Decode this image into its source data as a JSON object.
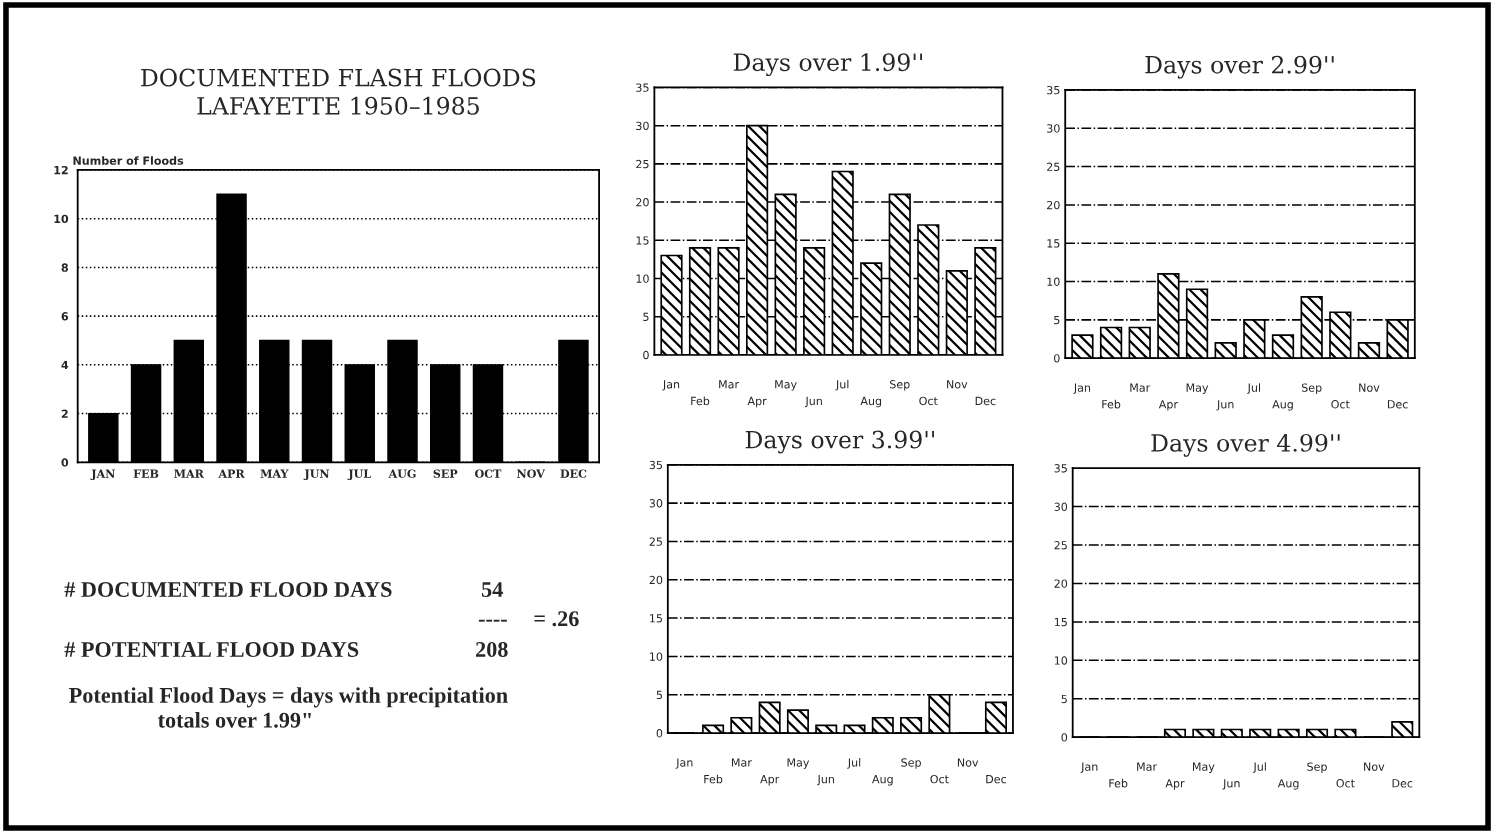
{
  "chart_data": [
    {
      "type": "bar",
      "title": "DOCUMENTED FLASH FLOODS\nLAFAYETTE 1950–1985",
      "ylabel": "Number of Floods",
      "categories": [
        "JAN",
        "FEB",
        "MAR",
        "APR",
        "MAY",
        "JUN",
        "JUL",
        "AUG",
        "SEP",
        "OCT",
        "NOV",
        "DEC"
      ],
      "values": [
        2,
        4,
        5,
        11,
        5,
        5,
        4,
        5,
        4,
        4,
        0,
        5
      ],
      "color": "#000000",
      "ylim": [
        0,
        12
      ],
      "yticks": [
        0,
        2,
        4,
        6,
        8,
        10,
        12
      ],
      "grid": "y",
      "line_style": "dotted",
      "annotations": [
        "# DOCUMENTED FLOOD DAYS",
        "54",
        "----",
        "= .26",
        "# POTENTIAL FLOOD DAYS",
        "208",
        "Potential Flood Days = days with precipitation\n                totals over 1.99\""
      ]
    },
    {
      "type": "bar",
      "title": "Days over 1.99''",
      "categories": [
        "Jan",
        "Feb",
        "Mar",
        "Apr",
        "May",
        "Jun",
        "Jul",
        "Aug",
        "Sep",
        "Oct",
        "Nov",
        "Dec"
      ],
      "values": [
        13,
        14,
        14,
        30,
        21,
        14,
        24,
        12,
        21,
        17,
        11,
        14
      ],
      "color": "#000000",
      "ylim": [
        0,
        35
      ],
      "yticks": [
        0,
        5,
        10,
        15,
        20,
        25,
        30,
        35
      ],
      "grid": "y",
      "line_style": "dashed"
    },
    {
      "type": "bar",
      "title": "Days over 2.99''",
      "categories": [
        "Jan",
        "Feb",
        "Mar",
        "Apr",
        "May",
        "Jun",
        "Jul",
        "Aug",
        "Sep",
        "Oct",
        "Nov",
        "Dec"
      ],
      "values": [
        3,
        4,
        4,
        11,
        9,
        2,
        5,
        3,
        8,
        6,
        2,
        5
      ],
      "color": "#000000",
      "ylim": [
        0,
        35
      ],
      "yticks": [
        0,
        5,
        10,
        15,
        20,
        25,
        30,
        35
      ],
      "grid": "y",
      "line_style": "dashed"
    },
    {
      "type": "bar",
      "title": "Days over 3.99''",
      "categories": [
        "Jan",
        "Feb",
        "Mar",
        "Apr",
        "May",
        "Jun",
        "Jul",
        "Aug",
        "Sep",
        "Oct",
        "Nov",
        "Dec"
      ],
      "values": [
        0,
        1,
        2,
        4,
        3,
        1,
        1,
        2,
        2,
        5,
        0,
        4
      ],
      "color": "#000000",
      "ylim": [
        0,
        35
      ],
      "yticks": [
        0,
        5,
        10,
        15,
        20,
        25,
        30,
        35
      ],
      "grid": "y",
      "line_style": "dashed"
    },
    {
      "type": "bar",
      "title": "Days over 4.99''",
      "categories": [
        "Jan",
        "Feb",
        "Mar",
        "Apr",
        "May",
        "Jun",
        "Jul",
        "Aug",
        "Sep",
        "Oct",
        "Nov",
        "Dec"
      ],
      "values": [
        0,
        0,
        0,
        1,
        1,
        1,
        1,
        1,
        1,
        1,
        0,
        2
      ],
      "color": "#000000",
      "ylim": [
        0,
        35
      ],
      "yticks": [
        0,
        5,
        10,
        15,
        20,
        25,
        30,
        35
      ],
      "grid": "y",
      "line_style": "dashed"
    }
  ]
}
